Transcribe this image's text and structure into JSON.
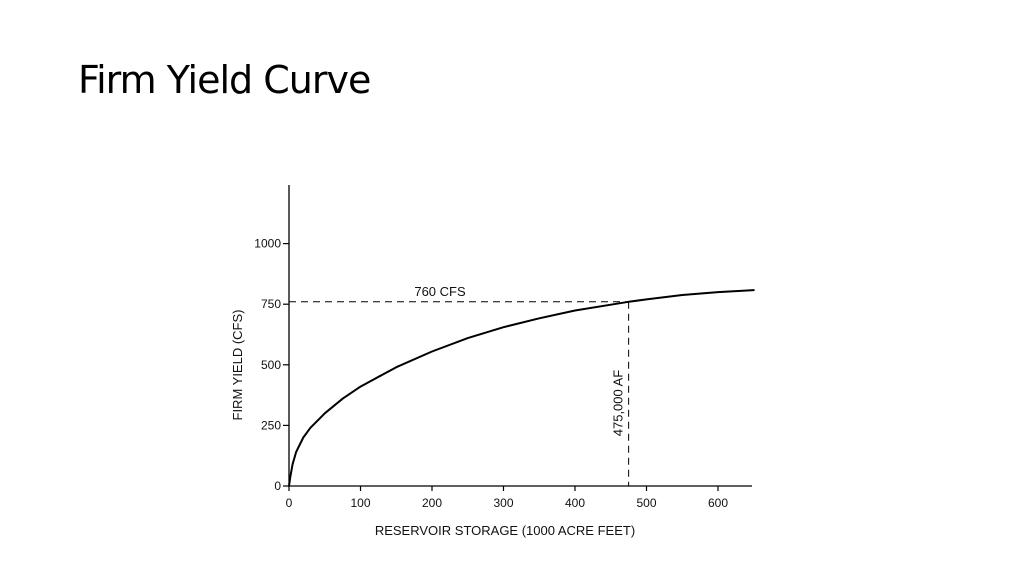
{
  "slide": {
    "title": "Firm Yield Curve"
  },
  "chart_data": {
    "type": "line",
    "title": "",
    "xlabel": "RESERVOIR STORAGE (1000 ACRE FEET)",
    "ylabel": "FIRM YIELD (CFS)",
    "xlim": [
      0,
      650
    ],
    "ylim": [
      0,
      1200
    ],
    "x_ticks": [
      0,
      100,
      200,
      300,
      400,
      500,
      600
    ],
    "x_tick_labels": [
      "0",
      "100",
      "200",
      "300",
      "400",
      "500",
      "600"
    ],
    "y_ticks": [
      0,
      250,
      500,
      750,
      1000
    ],
    "y_tick_labels": [
      "0",
      "250",
      "500",
      "750",
      "1000"
    ],
    "grid": false,
    "series": [
      {
        "x": [
          0,
          2,
          5,
          10,
          20,
          30,
          50,
          75,
          100,
          150,
          200,
          250,
          300,
          350,
          400,
          450,
          475,
          500,
          550,
          600,
          650
        ],
        "y": [
          0,
          40,
          90,
          140,
          200,
          240,
          300,
          360,
          410,
          490,
          555,
          610,
          655,
          692,
          724,
          748,
          760,
          770,
          788,
          800,
          808
        ]
      }
    ],
    "annotations": {
      "horizontal_label": "760 CFS",
      "vertical_label": "475,000 AF",
      "y_value": 760,
      "x_value": 475
    },
    "colors": {
      "line": "#000000",
      "axis": "#000000"
    }
  }
}
